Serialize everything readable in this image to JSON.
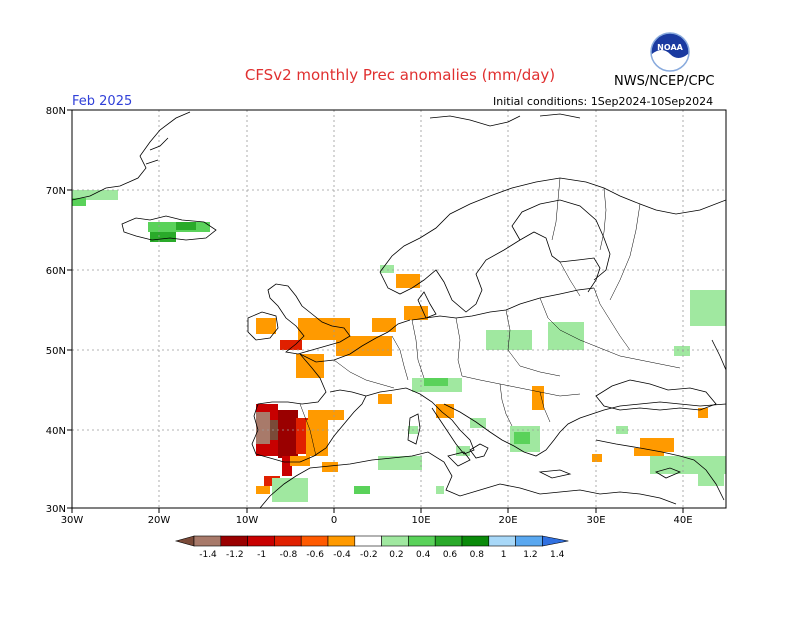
{
  "header": {
    "title": "CFSv2 monthly Prec anomalies (mm/day)",
    "month": "Feb 2025",
    "initial_conditions": "Initial conditions: 1Sep2024-10Sep2024",
    "agency": "NWS/NCEP/CPC",
    "logo_text": "NOAA"
  },
  "map": {
    "lon_ticks": [
      "30W",
      "20W",
      "10W",
      "0",
      "10E",
      "20E",
      "30E",
      "40E"
    ],
    "lat_ticks": [
      "80N",
      "70N",
      "60N",
      "50N",
      "40N",
      "30N"
    ],
    "lon_range": [
      -30,
      45
    ],
    "lat_range": [
      30,
      80
    ],
    "anomaly_regions": [
      {
        "region": "Iberian Peninsula (west/south)",
        "value": -1.2
      },
      {
        "region": "Portugal coast",
        "value": -1.0
      },
      {
        "region": "South Spain",
        "value": -0.6
      },
      {
        "region": "Central Spain",
        "value": -0.3
      },
      {
        "region": "England / Low Countries",
        "value": -0.3
      },
      {
        "region": "Southwest Norway",
        "value": -0.3
      },
      {
        "region": "Iceland",
        "value": 0.5
      },
      {
        "region": "East Greenland coast",
        "value": 0.4
      },
      {
        "region": "Northern Alps",
        "value": 0.3
      },
      {
        "region": "Greece",
        "value": 0.4
      },
      {
        "region": "Poland / Belarus",
        "value": 0.2
      },
      {
        "region": "North Africa",
        "value": 0.2
      },
      {
        "region": "East Turkey / Levant",
        "value": -0.3
      }
    ]
  },
  "legend": {
    "labels": [
      "-1.4",
      "-1.2",
      "-1",
      "-0.8",
      "-0.6",
      "-0.4",
      "-0.2",
      "0.2",
      "0.4",
      "0.6",
      "0.8",
      "1",
      "1.2",
      "1.4"
    ],
    "colors": [
      "#7a4a38",
      "#a87a6a",
      "#9a0000",
      "#c80000",
      "#e02000",
      "#ff5a00",
      "#ff9a00",
      "#ffffff",
      "#a0e8a0",
      "#5ad25a",
      "#2aaa2a",
      "#0a8a0a",
      "#a8d8f8",
      "#5aa8f0",
      "#3070e0"
    ]
  }
}
